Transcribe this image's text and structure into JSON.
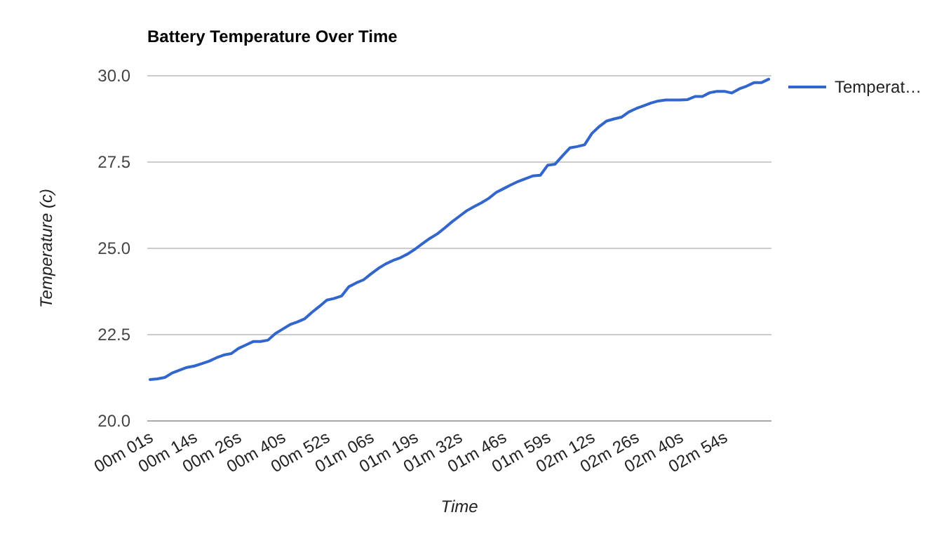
{
  "chart_data": {
    "type": "line",
    "title": "Battery Temperature Over Time",
    "xlabel": "Time",
    "ylabel": "Temperature (c)",
    "categories": [
      "00m 01s",
      null,
      null,
      null,
      null,
      null,
      "00m 14s",
      null,
      null,
      null,
      null,
      null,
      "00m 26s",
      null,
      null,
      null,
      null,
      null,
      "00m 40s",
      null,
      null,
      null,
      null,
      null,
      "00m 52s",
      null,
      null,
      null,
      null,
      null,
      "01m 06s",
      null,
      null,
      null,
      null,
      null,
      "01m 19s",
      null,
      null,
      null,
      null,
      null,
      "01m 32s",
      null,
      null,
      null,
      null,
      null,
      "01m 46s",
      null,
      null,
      null,
      null,
      null,
      "01m 59s",
      null,
      null,
      null,
      null,
      null,
      "02m 12s",
      null,
      null,
      null,
      null,
      null,
      "02m 26s",
      null,
      null,
      null,
      null,
      null,
      "02m 40s",
      null,
      null,
      null,
      null,
      null,
      "02m 54s",
      null,
      null,
      null,
      null,
      null,
      null
    ],
    "series": [
      {
        "name": "Temperat…",
        "color": "#3366cc",
        "values": [
          21.2,
          21.22,
          21.26,
          21.39,
          21.47,
          21.55,
          21.59,
          21.66,
          21.73,
          21.83,
          21.91,
          21.95,
          22.1,
          22.2,
          22.3,
          22.3,
          22.34,
          22.53,
          22.66,
          22.79,
          22.87,
          22.96,
          23.15,
          23.32,
          23.5,
          23.55,
          23.62,
          23.89,
          24.0,
          24.09,
          24.26,
          24.42,
          24.55,
          24.65,
          24.73,
          24.84,
          24.98,
          25.14,
          25.29,
          25.42,
          25.59,
          25.77,
          25.93,
          26.09,
          26.21,
          26.32,
          26.45,
          26.62,
          26.73,
          26.84,
          26.94,
          27.02,
          27.1,
          27.12,
          27.41,
          27.44,
          27.68,
          27.91,
          27.95,
          28.0,
          28.33,
          28.53,
          28.69,
          28.75,
          28.8,
          28.95,
          29.05,
          29.13,
          29.21,
          29.27,
          29.3,
          29.3,
          29.3,
          29.31,
          29.4,
          29.4,
          29.51,
          29.55,
          29.55,
          29.5,
          29.62,
          29.7,
          29.8,
          29.8,
          29.9
        ]
      }
    ],
    "ylim": [
      20,
      30
    ],
    "yticks": [
      {
        "value": 20,
        "label": "20.0"
      },
      {
        "value": 22.5,
        "label": "22.5"
      },
      {
        "value": 25,
        "label": "25.0"
      },
      {
        "value": 27.5,
        "label": "27.5"
      },
      {
        "value": 30,
        "label": "30.0"
      }
    ],
    "grid": "y",
    "legend": "right",
    "marker": "none",
    "line_style": "solid"
  }
}
